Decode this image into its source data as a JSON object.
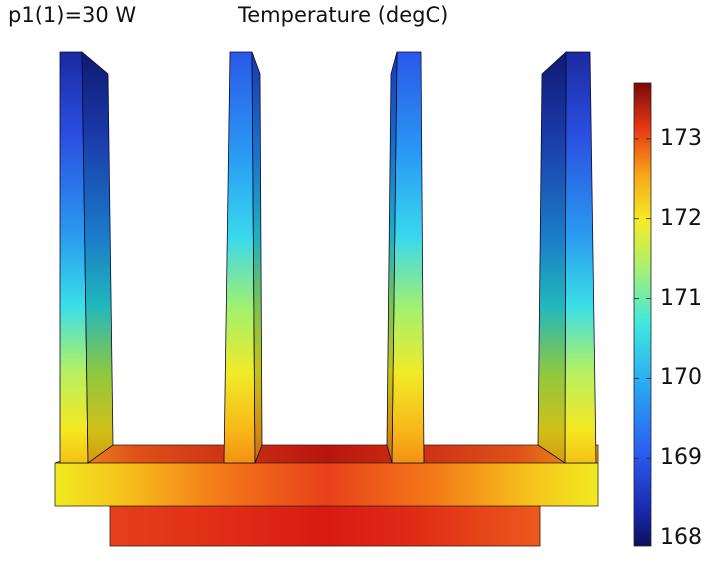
{
  "header": {
    "parameter_label": "p1(1)=30 W",
    "quantity_label": "Temperature (degC)"
  },
  "colorbar": {
    "ticks": [
      "173",
      "172",
      "171",
      "170",
      "169",
      "168"
    ],
    "tick_values": [
      173,
      172,
      171,
      170,
      169,
      168
    ],
    "range": [
      167.9,
      173.7
    ],
    "colormap": "rainbow",
    "colors": {
      "low": "#0a1a8a",
      "high": "#8a0a0a"
    }
  }
}
